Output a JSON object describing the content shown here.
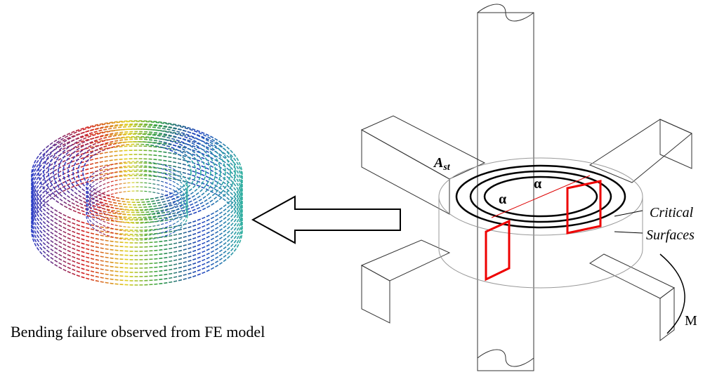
{
  "caption": "Bending failure observed from FE model",
  "steel_area": {
    "main": "A",
    "sub": "st"
  },
  "angles": [
    "α",
    "α"
  ],
  "critical_surfaces": [
    "Critical",
    "Surfaces"
  ],
  "moment": "M"
}
